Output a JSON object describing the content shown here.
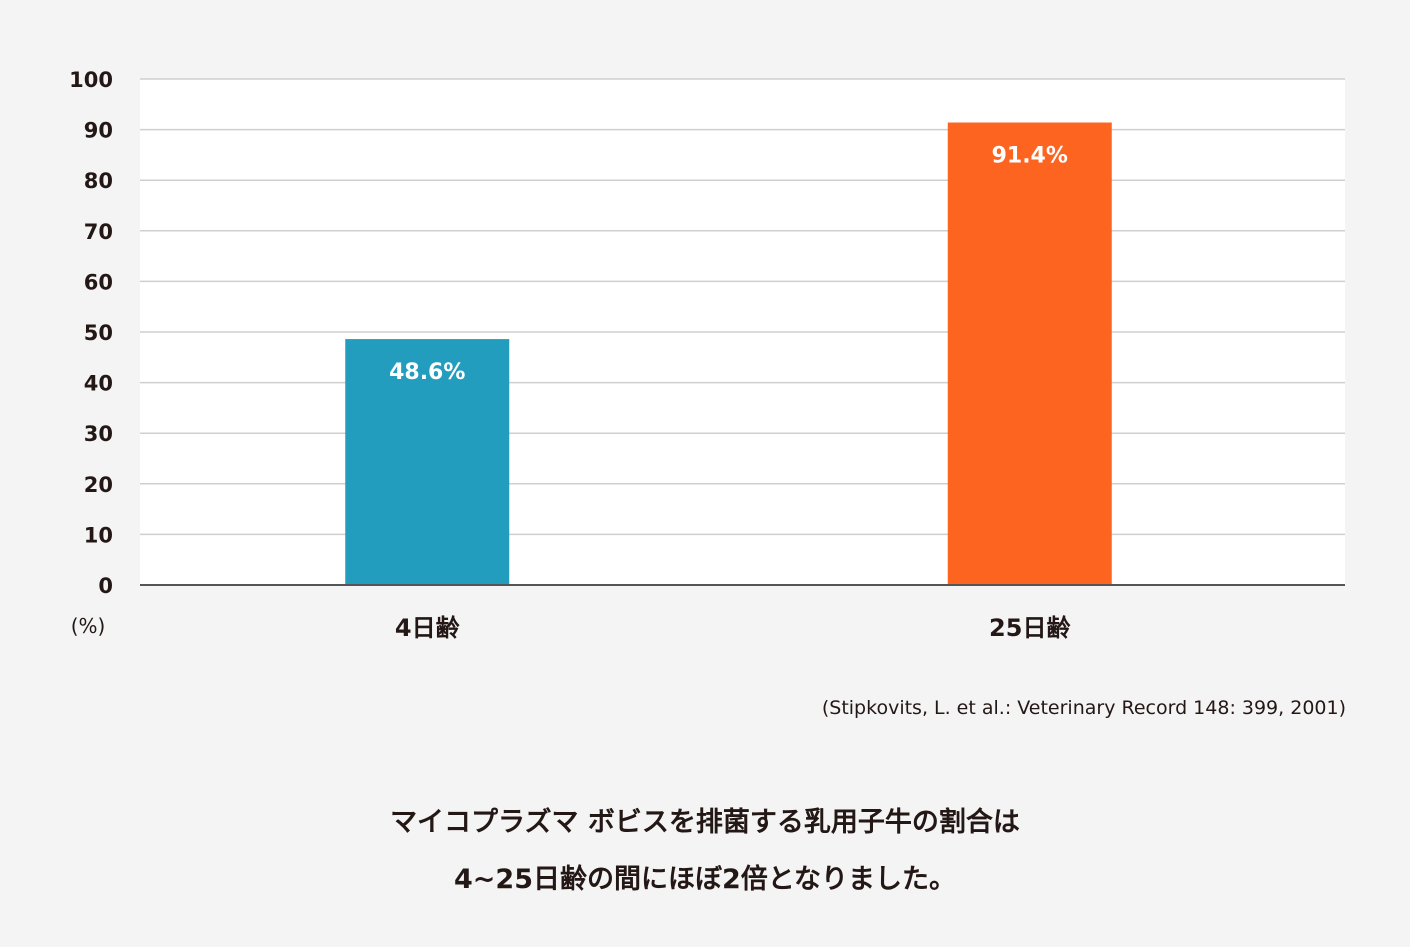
{
  "chart_data": {
    "type": "bar",
    "categories": [
      "4日齢",
      "25日齢"
    ],
    "values": [
      48.6,
      91.4
    ],
    "data_labels": [
      "48.6%",
      "91.4%"
    ],
    "colors": [
      "#239dbd",
      "#fc6420"
    ],
    "ylabel": "(%)",
    "ylim": [
      0,
      100
    ],
    "yticks": [
      0,
      10,
      20,
      30,
      40,
      50,
      60,
      70,
      80,
      90,
      100
    ],
    "grid": true,
    "legend": "none"
  },
  "source": "(Stipkovits, L. et al.: Veterinary Record 148: 399, 2001)",
  "caption": {
    "line1": "マイコプラズマ ボビスを排菌する乳用子牛の割合は",
    "line2": "4~25日齢の間にほぼ2倍となりました。"
  }
}
